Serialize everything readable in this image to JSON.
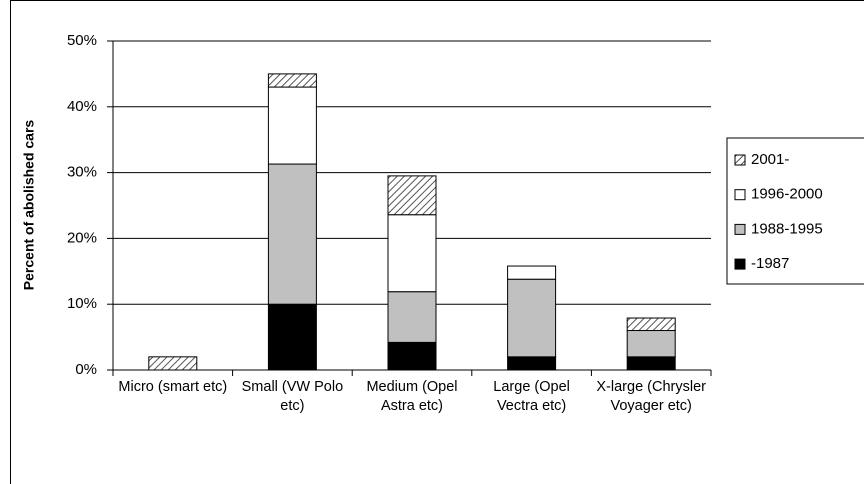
{
  "chart_data": {
    "type": "stacked_bar",
    "y_label": "Percent of abolished cars",
    "categories": [
      "Micro (smart etc)",
      "Small (VW Polo etc)",
      "Medium (Opel Astra etc)",
      "Large (Opel Vectra etc)",
      "X-large (Chrysler Voyager etc)"
    ],
    "series": [
      {
        "name": "-1987",
        "color": "#000000",
        "values": [
          0,
          10,
          4.2,
          2,
          2
        ]
      },
      {
        "name": "1988-1995",
        "color": "#c0c0c0",
        "values": [
          0,
          21.3,
          7.7,
          11.8,
          4
        ]
      },
      {
        "name": "1996-2000",
        "color": "#ffffff",
        "values": [
          0,
          11.7,
          11.7,
          2,
          0
        ]
      },
      {
        "name": "2001-",
        "color": "#ffffff",
        "hatch": true,
        "values": [
          2,
          2,
          5.9,
          0,
          1.9
        ]
      }
    ],
    "ylim": [
      0,
      50
    ],
    "yticks": [
      {
        "value": 0,
        "label": "0%"
      },
      {
        "value": 10,
        "label": "10%"
      },
      {
        "value": 20,
        "label": "20%"
      },
      {
        "value": 30,
        "label": "30%"
      },
      {
        "value": 40,
        "label": "40%"
      },
      {
        "value": 50,
        "label": "50%"
      }
    ],
    "grid": true,
    "legend": "right"
  }
}
